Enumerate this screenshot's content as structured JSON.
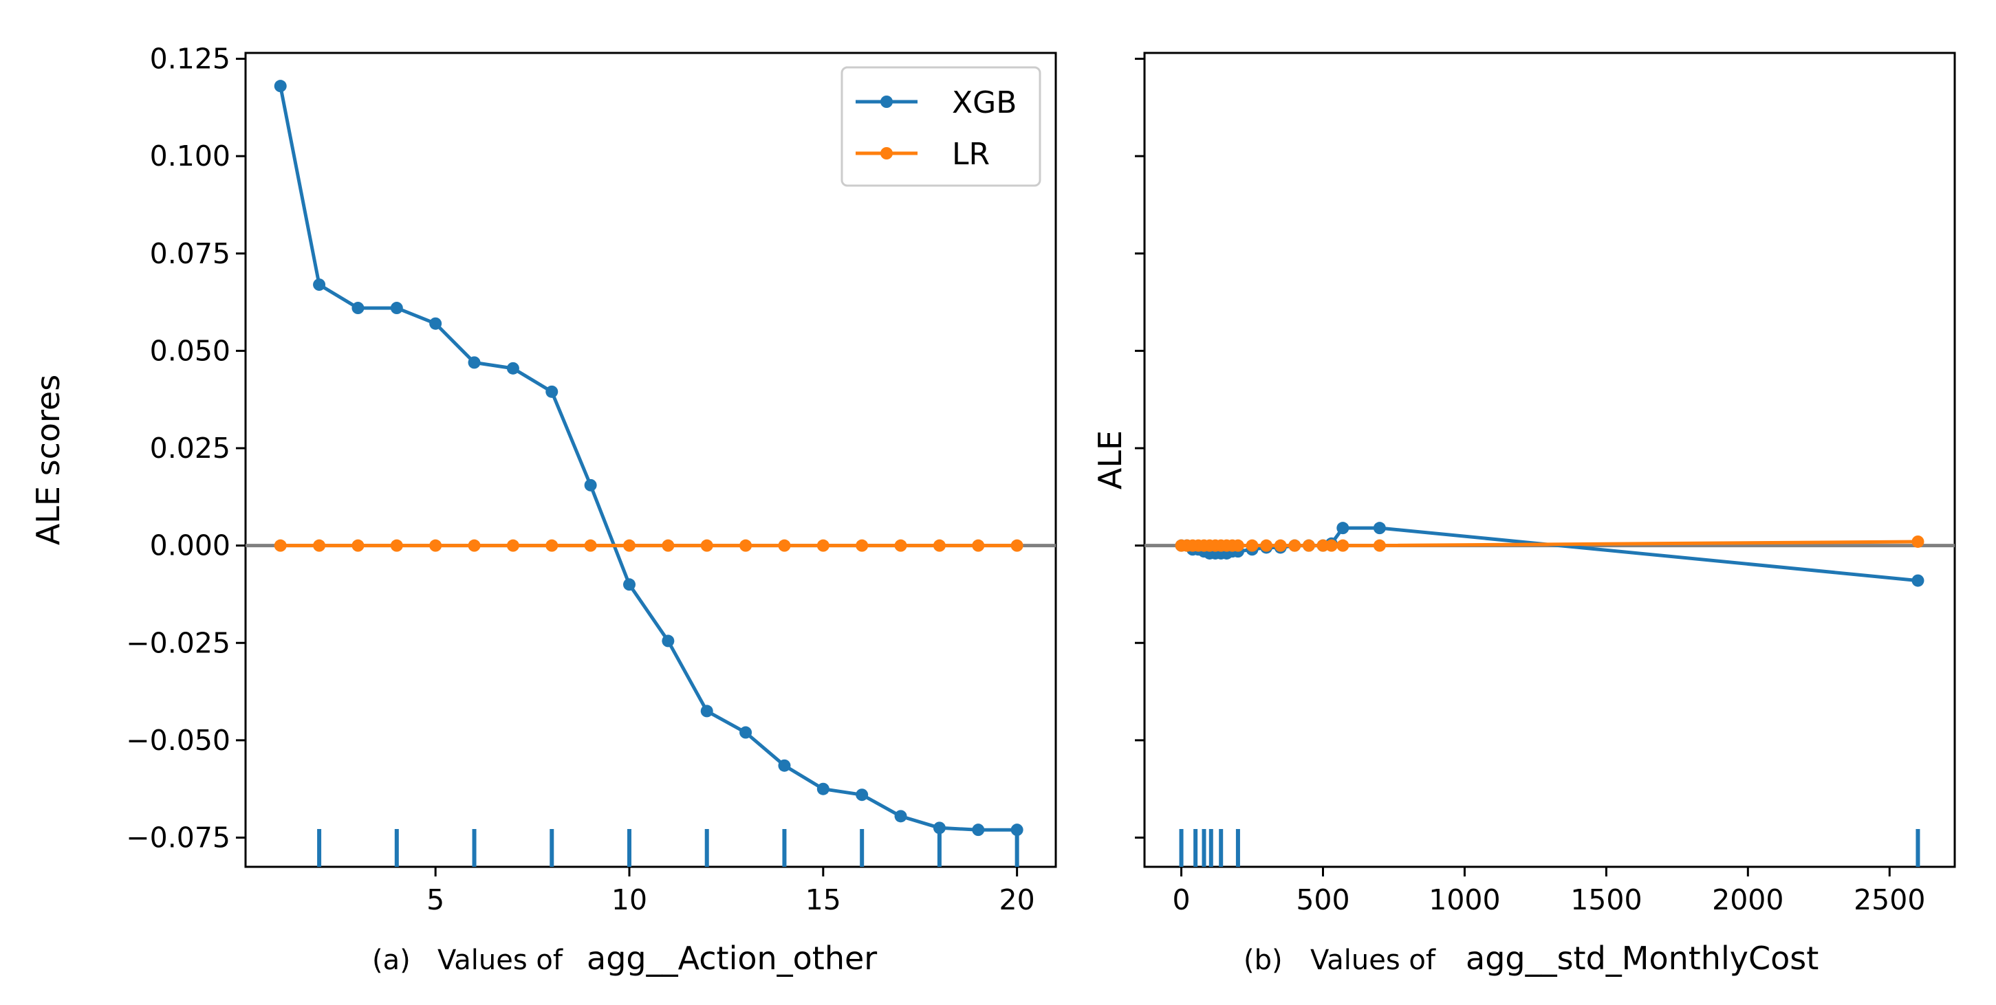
{
  "chart_data": [
    {
      "type": "line",
      "panel": "a",
      "caption_prefix": "(a)",
      "caption_values_of": "Values of",
      "caption_feature": "agg__Action_other",
      "ylabel": "ALE scores",
      "xlim": [
        0.1,
        21.0
      ],
      "ylim": [
        -0.0825,
        0.1265
      ],
      "xticks": [
        5,
        10,
        15,
        20
      ],
      "xtick_labels": [
        "5",
        "10",
        "15",
        "20"
      ],
      "yticks": [
        -0.075,
        -0.05,
        -0.025,
        0.0,
        0.025,
        0.05,
        0.075,
        0.1,
        0.125
      ],
      "ytick_labels": [
        "−0.075",
        "−0.050",
        "−0.025",
        "0.000",
        "0.025",
        "0.050",
        "0.075",
        "0.100",
        "0.125"
      ],
      "show_y_labels": true,
      "zero_line": true,
      "series": [
        {
          "name": "XGB",
          "color": "#1f77b4",
          "x": [
            1,
            2,
            3,
            4,
            5,
            6,
            7,
            8,
            9,
            10,
            11,
            12,
            13,
            14,
            15,
            16,
            17,
            18,
            19,
            20
          ],
          "y": [
            0.118,
            0.067,
            0.061,
            0.061,
            0.057,
            0.047,
            0.0455,
            0.0395,
            0.0155,
            -0.01,
            -0.0245,
            -0.0425,
            -0.048,
            -0.0565,
            -0.0625,
            -0.064,
            -0.0695,
            -0.0725,
            -0.073,
            -0.073
          ]
        },
        {
          "name": "LR",
          "color": "#ff7f0e",
          "x": [
            1,
            2,
            3,
            4,
            5,
            6,
            7,
            8,
            9,
            10,
            11,
            12,
            13,
            14,
            15,
            16,
            17,
            18,
            19,
            20
          ],
          "y": [
            0,
            0,
            0,
            0,
            0,
            0,
            0,
            0,
            0,
            0,
            0,
            0,
            0,
            0,
            0,
            0,
            0,
            0,
            0,
            0
          ]
        }
      ],
      "rug": [
        2,
        4,
        6,
        8,
        10,
        12,
        14,
        16,
        18,
        20
      ],
      "legend": {
        "placement": "top-right",
        "entries": [
          {
            "label": "XGB",
            "color": "#1f77b4"
          },
          {
            "label": "LR",
            "color": "#ff7f0e"
          }
        ]
      }
    },
    {
      "type": "line",
      "panel": "b",
      "caption_prefix": "(b)",
      "caption_values_of": "Values of",
      "caption_feature": "agg__std_MonthlyCost",
      "ylabel": "ALE",
      "xlim": [
        -130,
        2730
      ],
      "ylim": [
        -0.0825,
        0.1265
      ],
      "xticks": [
        0,
        500,
        1000,
        1500,
        2000,
        2500
      ],
      "xtick_labels": [
        "0",
        "500",
        "1000",
        "1500",
        "2000",
        "2500"
      ],
      "yticks": [
        -0.075,
        -0.05,
        -0.025,
        0.0,
        0.025,
        0.05,
        0.075,
        0.1,
        0.125
      ],
      "show_y_labels": false,
      "zero_line": true,
      "series": [
        {
          "name": "XGB",
          "color": "#1f77b4",
          "x": [
            0,
            20,
            40,
            60,
            80,
            100,
            120,
            140,
            160,
            180,
            200,
            250,
            300,
            350,
            400,
            450,
            500,
            530,
            570,
            700,
            2600
          ],
          "y": [
            0.0,
            0.0,
            -0.001,
            -0.001,
            -0.0015,
            -0.002,
            -0.002,
            -0.002,
            -0.002,
            -0.0015,
            -0.0015,
            -0.001,
            -0.0005,
            -0.0005,
            0.0,
            0.0,
            0.0,
            0.0005,
            0.0045,
            0.0045,
            -0.009
          ]
        },
        {
          "name": "LR",
          "color": "#ff7f0e",
          "x": [
            0,
            20,
            40,
            60,
            80,
            100,
            120,
            140,
            160,
            180,
            200,
            250,
            300,
            350,
            400,
            450,
            500,
            530,
            570,
            700,
            2600
          ],
          "y": [
            0,
            0,
            0,
            0,
            0,
            0,
            0,
            0,
            0,
            0,
            0,
            0,
            0,
            0,
            0,
            0,
            0,
            0,
            0,
            0,
            0.001
          ]
        }
      ],
      "rug": [
        0,
        50,
        80,
        105,
        140,
        200,
        2600
      ]
    }
  ]
}
